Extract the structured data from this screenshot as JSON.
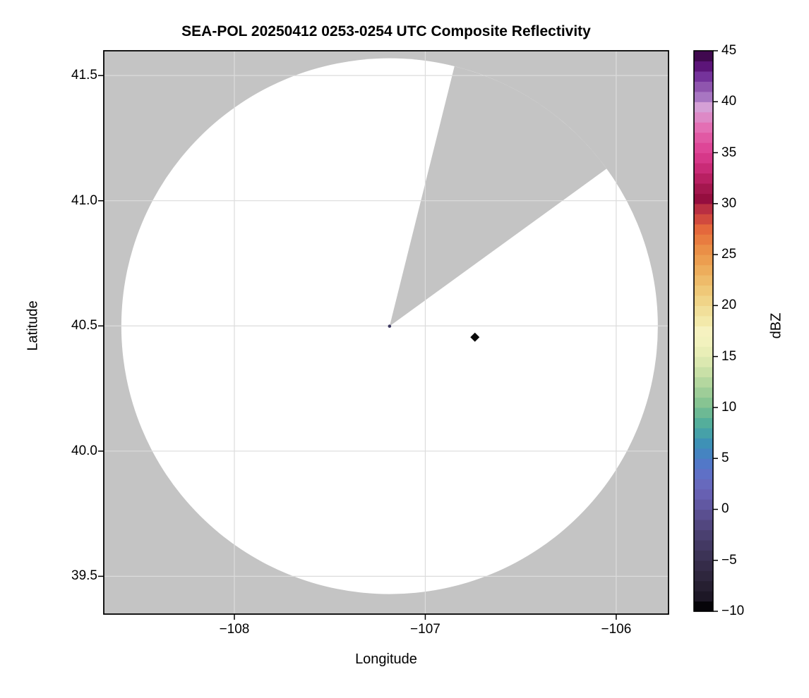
{
  "chart_data": {
    "type": "heatmap",
    "title": "SEA-POL 20250412 0253-0254 UTC Composite Reflectivity",
    "xlabel": "Longitude",
    "ylabel": "Latitude",
    "xlim": [
      -108.684,
      -105.726
    ],
    "ylim": [
      39.349,
      41.599
    ],
    "grid": true,
    "xticks": {
      "values": [
        -108,
        -107,
        -106
      ],
      "labels": [
        "−108",
        "−107",
        "−106"
      ]
    },
    "yticks": {
      "values": [
        41.5,
        41.0,
        40.5,
        40.0,
        39.5
      ],
      "labels": [
        "41.5",
        "41.0",
        "40.5",
        "40.0",
        "39.5"
      ]
    },
    "background_color": "#c4c4c4",
    "coverage_color": "#ffffff",
    "grid_color": "#dcdcdc",
    "radar": {
      "center_lon": -107.187,
      "center_lat": 40.499,
      "range_lon_deg": 1.405,
      "range_lat_deg": 1.07,
      "blocked_sector_azimuth_deg": [
        14,
        54
      ],
      "center_dot_color": "#3c3860"
    },
    "points": [
      {
        "lon": -106.74,
        "lat": 40.455,
        "shape": "diamond",
        "color": "#0a0a0a",
        "approx_dbz": -10
      }
    ],
    "colorbar": {
      "label": "dBZ",
      "min": -10,
      "max": 45,
      "band_step_dbz": 1,
      "tick_values": [
        45,
        40,
        35,
        30,
        25,
        20,
        15,
        10,
        5,
        0,
        -5,
        -10
      ],
      "tick_labels": [
        "45",
        "40",
        "35",
        "30",
        "25",
        "20",
        "15",
        "10",
        "5",
        "0",
        "−5",
        "−10"
      ],
      "band_colors_ascending": [
        "#060409",
        "#1d1726",
        "#261f31",
        "#2e263d",
        "#352c49",
        "#3c3356",
        "#433963",
        "#4a4070",
        "#52477f",
        "#5a4f90",
        "#6158a2",
        "#6760b2",
        "#6769bd",
        "#5f70c6",
        "#5278c8",
        "#4584c1",
        "#3e91b6",
        "#46a1a8",
        "#54ae9b",
        "#6db994",
        "#87c492",
        "#9ecd98",
        "#b4d79f",
        "#c9e0a7",
        "#dbe8b0",
        "#e9eeb7",
        "#f2f2be",
        "#f6f2c0",
        "#f3e9aa",
        "#f1df9a",
        "#f0d488",
        "#efc878",
        "#eebb6a",
        "#edad5c",
        "#ec9e50",
        "#ea8f47",
        "#e87c40",
        "#e4683c",
        "#d14a3e",
        "#b92f42",
        "#950e3f",
        "#a4174e",
        "#b82062",
        "#c92b77",
        "#d63889",
        "#de4697",
        "#e159a4",
        "#e36fb4",
        "#dd89c6",
        "#d5a0d6",
        "#a876c2",
        "#8f55ae",
        "#75339b",
        "#5c1579",
        "#40094f"
      ]
    }
  }
}
